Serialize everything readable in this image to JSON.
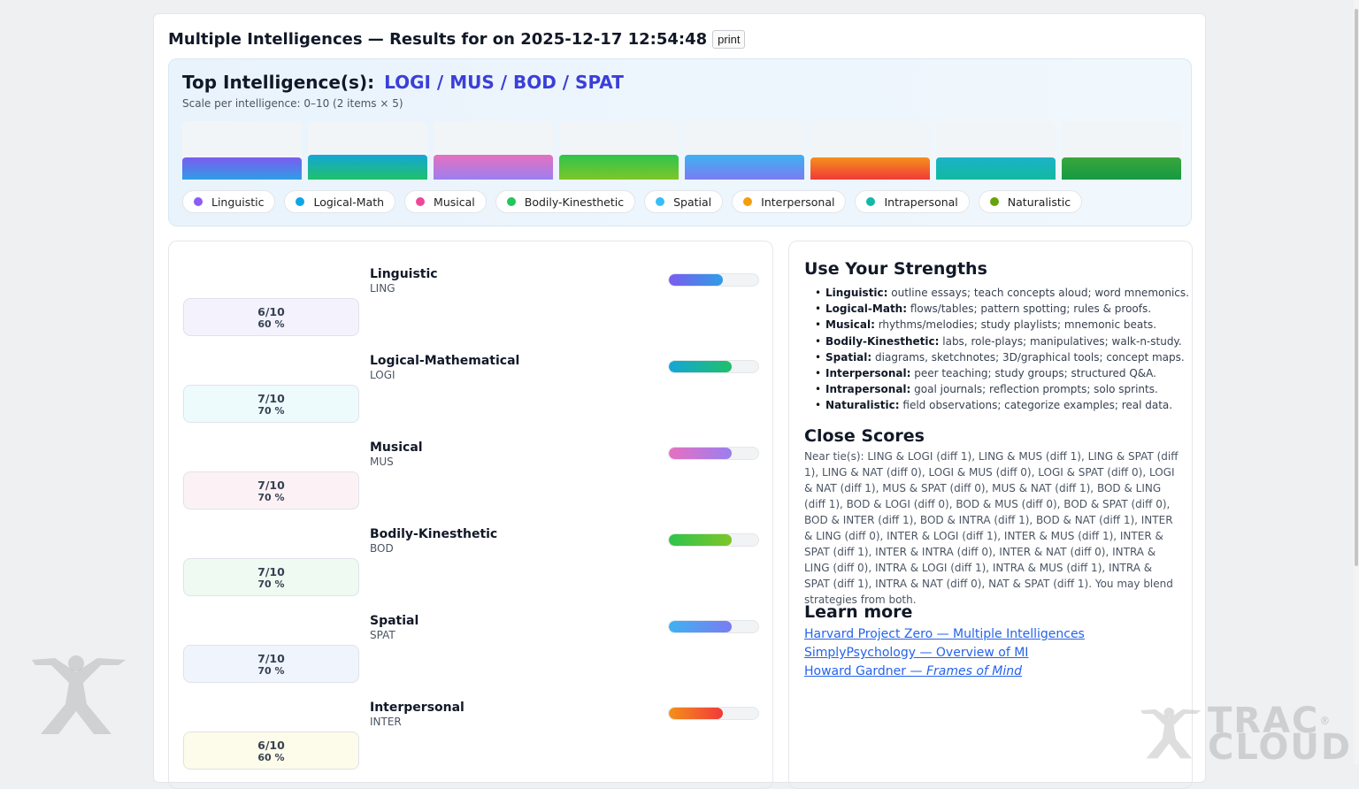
{
  "header": {
    "title": "Multiple Intelligences — Results for on 2025-12-17 12:54:48",
    "print_label": "print"
  },
  "top_card": {
    "heading_label": "Top Intelligence(s):",
    "top_values": "LOGI / MUS / BOD / SPAT",
    "scale_note": "Scale per intelligence: 0–10 (2 items × 5)"
  },
  "chart_data": {
    "type": "bar",
    "categories": [
      "Linguistic",
      "Logical-Math",
      "Musical",
      "Bodily-Kinesthetic",
      "Spatial",
      "Interpersonal",
      "Intrapersonal",
      "Naturalistic"
    ],
    "values": [
      6,
      7,
      7,
      7,
      7,
      6,
      6,
      6
    ],
    "ylim": [
      0,
      10
    ],
    "colors": [
      [
        "#7b5cf0",
        "#2f9de6"
      ],
      [
        "#14a6d8",
        "#1fc06a"
      ],
      [
        "#e670c0",
        "#9b7ff0"
      ],
      [
        "#2ec44e",
        "#7ec627"
      ],
      [
        "#3eb2f2",
        "#7a7cf2"
      ],
      [
        "#f5901a",
        "#f03a3a"
      ],
      [
        "#1ab3c8",
        "#14b8a0"
      ],
      [
        "#3aa63c",
        "#159a43"
      ]
    ],
    "legend_dots": [
      "#8b5cf6",
      "#0ea5e9",
      "#ec4899",
      "#22c55e",
      "#38bdf8",
      "#f59e0b",
      "#14b8a6",
      "#65a30d"
    ]
  },
  "rows": [
    {
      "name": "Linguistic",
      "code": "LING",
      "score": "6/10",
      "pct": "60 %",
      "fill": 0.6,
      "box_bg": "#f3f2fd",
      "grad": [
        "#7b5cf0",
        "#2f9de6"
      ]
    },
    {
      "name": "Logical-Mathematical",
      "code": "LOGI",
      "score": "7/10",
      "pct": "70 %",
      "fill": 0.7,
      "box_bg": "#eefbfd",
      "grad": [
        "#14a6d8",
        "#1fc06a"
      ]
    },
    {
      "name": "Musical",
      "code": "MUS",
      "score": "7/10",
      "pct": "70 %",
      "fill": 0.7,
      "box_bg": "#fcf2f6",
      "grad": [
        "#e670c0",
        "#9b7ff0"
      ]
    },
    {
      "name": "Bodily-Kinesthetic",
      "code": "BOD",
      "score": "7/10",
      "pct": "70 %",
      "fill": 0.7,
      "box_bg": "#eefaf2",
      "grad": [
        "#2ec44e",
        "#7ec627"
      ]
    },
    {
      "name": "Spatial",
      "code": "SPAT",
      "score": "7/10",
      "pct": "70 %",
      "fill": 0.7,
      "box_bg": "#eff4fd",
      "grad": [
        "#3eb2f2",
        "#7a7cf2"
      ]
    },
    {
      "name": "Interpersonal",
      "code": "INTER",
      "score": "6/10",
      "pct": "60 %",
      "fill": 0.6,
      "box_bg": "#fdfbea",
      "grad": [
        "#f5901a",
        "#f03a3a"
      ]
    }
  ],
  "strengths": {
    "heading": "Use Your Strengths",
    "items": [
      {
        "label": "Linguistic:",
        "text": " outline essays; teach concepts aloud; word mnemonics."
      },
      {
        "label": "Logical-Math:",
        "text": " flows/tables; pattern spotting; rules & proofs."
      },
      {
        "label": "Musical:",
        "text": " rhythms/melodies; study playlists; mnemonic beats."
      },
      {
        "label": "Bodily-Kinesthetic:",
        "text": " labs, role-plays; manipulatives; walk-n-study."
      },
      {
        "label": "Spatial:",
        "text": " diagrams, sketchnotes; 3D/graphical tools; concept maps."
      },
      {
        "label": "Interpersonal:",
        "text": " peer teaching; study groups; structured Q&A."
      },
      {
        "label": "Intrapersonal:",
        "text": " goal journals; reflection prompts; solo sprints."
      },
      {
        "label": "Naturalistic:",
        "text": " field observations; categorize examples; real data."
      }
    ]
  },
  "close_scores": {
    "heading": "Close Scores",
    "text": "Near tie(s): LING & LOGI (diff 1), LING & MUS (diff 1), LING & SPAT (diff 1), LING & NAT (diff 0), LOGI & MUS (diff 0), LOGI & SPAT (diff 0), LOGI & NAT (diff 1), MUS & SPAT (diff 0), MUS & NAT (diff 1), BOD & LING (diff 1), BOD & LOGI (diff 0), BOD & MUS (diff 0), BOD & SPAT (diff 0), BOD & INTER (diff 1), BOD & INTRA (diff 1), BOD & NAT (diff 1), INTER & LING (diff 0), INTER & LOGI (diff 1), INTER & MUS (diff 1), INTER & SPAT (diff 1), INTER & INTRA (diff 0), INTER & NAT (diff 0), INTRA & LING (diff 0), INTRA & LOGI (diff 1), INTRA & MUS (diff 1), INTRA & SPAT (diff 1), INTRA & NAT (diff 0), NAT & SPAT (diff 1). You may blend strategies from both."
  },
  "learn_more": {
    "heading": "Learn more",
    "link1": "Harvard Project Zero — Multiple Intelligences",
    "link2": "SimplyPsychology — Overview of MI",
    "link3_prefix": "Howard Gardner — ",
    "link3_italic": "Frames of Mind"
  },
  "watermark": {
    "brand_line1": "TRAC",
    "brand_line2": "CLOUD",
    "reg": "®"
  }
}
